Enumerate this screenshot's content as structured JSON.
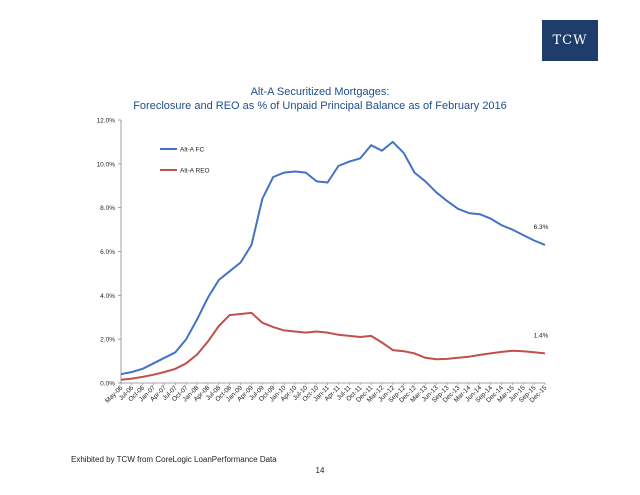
{
  "logo": {
    "text": "TCW"
  },
  "footnote": "Exhibited by TCW from CoreLogic LoanPerformance Data",
  "page_number": "14",
  "colors": {
    "fc": "#4472c4",
    "reo": "#c0504d",
    "title": "#1f4e8c",
    "logo_bg": "#1f3d6b"
  },
  "chart_data": {
    "type": "line",
    "title": "Alt-A Securitized Mortgages:",
    "subtitle": "Foreclosure and REO as % of Unpaid Principal Balance as of February 2016",
    "xlabel": "",
    "ylabel": "",
    "ylim": [
      0,
      12
    ],
    "y_ticks": [
      "0.0%",
      "2.0%",
      "4.0%",
      "6.0%",
      "8.0%",
      "10.0%",
      "12.0%"
    ],
    "x_tick_labels": [
      "May-06",
      "Jul-06",
      "Oct-06",
      "Jan-07",
      "Apr-07",
      "Jul-07",
      "Oct-07",
      "Jan-08",
      "Apr-08",
      "Jul-08",
      "Oct-08",
      "Jan-09",
      "Apr-09",
      "Jul-09",
      "Oct-09",
      "Jan-10",
      "Apr-10",
      "Jul-10",
      "Oct-10",
      "Jan-11",
      "Apr-11",
      "Jul-11",
      "Oct-11",
      "Dec-11",
      "Mar-12",
      "Jun-12",
      "Sep-12",
      "Dec-12",
      "Mar-13",
      "Jun-13",
      "Sep-13",
      "Dec-13",
      "Mar-14",
      "Jun-14",
      "Sep-14",
      "Dec-14",
      "Mar-15",
      "Jun-15",
      "Sep-15",
      "Dec-15"
    ],
    "grid": false,
    "legend": "top-left",
    "series": [
      {
        "name": "Alt-A FC",
        "color": "#4472c4",
        "end_label": "6.3%",
        "values": [
          0.4,
          0.5,
          0.65,
          0.9,
          1.15,
          1.4,
          2.0,
          2.9,
          3.9,
          4.7,
          5.1,
          5.5,
          6.3,
          8.4,
          9.4,
          9.6,
          9.65,
          9.6,
          9.2,
          9.15,
          9.9,
          10.1,
          10.25,
          10.85,
          10.6,
          11.0,
          10.5,
          9.6,
          9.2,
          8.7,
          8.3,
          7.95,
          7.75,
          7.7,
          7.5,
          7.2,
          7.0,
          6.75,
          6.5,
          6.3
        ]
      },
      {
        "name": "Alt-A REO",
        "color": "#c0504d",
        "end_label": "1.4%",
        "values": [
          0.15,
          0.2,
          0.28,
          0.38,
          0.5,
          0.65,
          0.9,
          1.3,
          1.9,
          2.6,
          3.1,
          3.15,
          3.2,
          2.75,
          2.55,
          2.4,
          2.35,
          2.3,
          2.35,
          2.3,
          2.2,
          2.15,
          2.1,
          2.15,
          1.85,
          1.5,
          1.45,
          1.35,
          1.15,
          1.08,
          1.1,
          1.15,
          1.2,
          1.28,
          1.35,
          1.42,
          1.47,
          1.45,
          1.4,
          1.35
        ]
      }
    ]
  }
}
